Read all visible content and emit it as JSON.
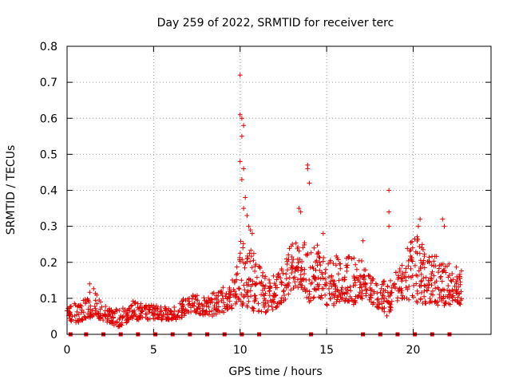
{
  "chart_data": {
    "type": "scatter",
    "title": "Day 259 of 2022, SRMTID for receiver terc",
    "xlabel": "GPS time / hours",
    "ylabel": "SRMTID / TECUs",
    "xlim": [
      0,
      24.5
    ],
    "ylim": [
      0,
      0.8
    ],
    "xticks": [
      0,
      5,
      10,
      15,
      20
    ],
    "yticks": [
      0,
      0.1,
      0.2,
      0.3,
      0.4,
      0.5,
      0.6,
      0.7,
      0.8
    ],
    "xtick_labels": [
      "0",
      "5",
      "10",
      "15",
      "20"
    ],
    "ytick_labels": [
      "0",
      "0.1",
      "0.2",
      "0.3",
      "0.4",
      "0.5",
      "0.6",
      "0.7",
      "0.8"
    ],
    "grid": true,
    "marker": "+",
    "color": "#e00000",
    "envelope": [
      [
        0.0,
        0.04,
        0.07
      ],
      [
        0.5,
        0.03,
        0.09
      ],
      [
        1.0,
        0.04,
        0.1
      ],
      [
        1.5,
        0.05,
        0.13
      ],
      [
        2.0,
        0.04,
        0.09
      ],
      [
        2.5,
        0.03,
        0.07
      ],
      [
        3.0,
        0.02,
        0.07
      ],
      [
        3.5,
        0.03,
        0.08
      ],
      [
        4.0,
        0.04,
        0.1
      ],
      [
        4.5,
        0.04,
        0.09
      ],
      [
        5.0,
        0.04,
        0.08
      ],
      [
        5.5,
        0.04,
        0.08
      ],
      [
        6.0,
        0.04,
        0.07
      ],
      [
        6.5,
        0.04,
        0.09
      ],
      [
        7.0,
        0.06,
        0.11
      ],
      [
        7.5,
        0.06,
        0.11
      ],
      [
        8.0,
        0.05,
        0.1
      ],
      [
        8.5,
        0.05,
        0.12
      ],
      [
        9.0,
        0.06,
        0.13
      ],
      [
        9.5,
        0.07,
        0.14
      ],
      [
        10.0,
        0.08,
        0.26
      ],
      [
        10.5,
        0.07,
        0.27
      ],
      [
        11.0,
        0.06,
        0.2
      ],
      [
        11.5,
        0.06,
        0.17
      ],
      [
        12.0,
        0.07,
        0.18
      ],
      [
        12.5,
        0.09,
        0.2
      ],
      [
        13.0,
        0.12,
        0.26
      ],
      [
        13.5,
        0.13,
        0.27
      ],
      [
        14.0,
        0.09,
        0.24
      ],
      [
        14.5,
        0.1,
        0.25
      ],
      [
        15.0,
        0.08,
        0.2
      ],
      [
        15.5,
        0.08,
        0.22
      ],
      [
        16.0,
        0.09,
        0.22
      ],
      [
        16.5,
        0.08,
        0.23
      ],
      [
        17.0,
        0.1,
        0.22
      ],
      [
        17.5,
        0.09,
        0.17
      ],
      [
        18.0,
        0.07,
        0.13
      ],
      [
        18.5,
        0.05,
        0.16
      ],
      [
        19.0,
        0.09,
        0.19
      ],
      [
        19.5,
        0.1,
        0.22
      ],
      [
        20.0,
        0.09,
        0.28
      ],
      [
        20.5,
        0.08,
        0.27
      ],
      [
        21.0,
        0.08,
        0.22
      ],
      [
        21.5,
        0.08,
        0.23
      ],
      [
        22.0,
        0.08,
        0.2
      ],
      [
        22.5,
        0.09,
        0.19
      ],
      [
        22.8,
        0.08,
        0.18
      ]
    ],
    "spikes": [
      [
        1.3,
        0.14
      ],
      [
        10.0,
        0.72
      ],
      [
        10.0,
        0.61
      ],
      [
        10.1,
        0.6
      ],
      [
        10.2,
        0.58
      ],
      [
        10.1,
        0.55
      ],
      [
        10.0,
        0.48
      ],
      [
        10.2,
        0.46
      ],
      [
        10.1,
        0.43
      ],
      [
        10.3,
        0.38
      ],
      [
        10.2,
        0.35
      ],
      [
        10.4,
        0.33
      ],
      [
        10.5,
        0.3
      ],
      [
        10.6,
        0.29
      ],
      [
        10.7,
        0.28
      ],
      [
        13.9,
        0.47
      ],
      [
        13.9,
        0.46
      ],
      [
        14.0,
        0.42
      ],
      [
        13.4,
        0.35
      ],
      [
        13.5,
        0.34
      ],
      [
        18.6,
        0.4
      ],
      [
        18.6,
        0.34
      ],
      [
        18.6,
        0.3
      ],
      [
        20.4,
        0.32
      ],
      [
        21.7,
        0.32
      ],
      [
        21.8,
        0.3
      ],
      [
        14.8,
        0.28
      ],
      [
        17.1,
        0.26
      ],
      [
        20.3,
        0.3
      ]
    ],
    "baseline_marks": [
      0.2,
      1.1,
      2.1,
      3.1,
      4.1,
      5.1,
      6.1,
      7.1,
      8.1,
      9.1,
      10.1,
      11.1,
      14.1,
      17.1,
      18.1,
      19.1,
      20.1,
      21.1,
      22.1
    ]
  }
}
